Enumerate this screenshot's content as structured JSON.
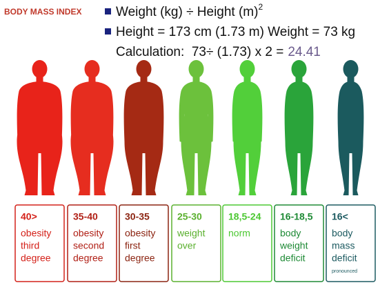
{
  "header": {
    "title": "BODY MASS INDEX",
    "formula": {
      "text": "Weight (kg) ÷ Height (m)",
      "superscript": "2"
    },
    "measurements": "Height = 173 cm (1.73 m) Weight = 73 kg",
    "calculation": {
      "text": "Calculation:  73÷ (1.73) x 2 =",
      "result": "24.41"
    }
  },
  "categories": [
    {
      "range": "40>",
      "label": [
        "obesity",
        "third",
        "degree"
      ]
    },
    {
      "range": "35-40",
      "label": [
        "obesity",
        "second",
        "degree"
      ]
    },
    {
      "range": "30-35",
      "label": [
        "obesity",
        "first",
        "degree"
      ]
    },
    {
      "range": "25-30",
      "label": [
        "weight",
        "over"
      ]
    },
    {
      "range": "18,5-24",
      "label": [
        "norm"
      ]
    },
    {
      "range": "16-18,5",
      "label": [
        "body",
        "weight",
        "deficit"
      ]
    },
    {
      "range": "16<",
      "label": [
        "body",
        "mass",
        "deficit"
      ],
      "note": "pronounced"
    }
  ]
}
